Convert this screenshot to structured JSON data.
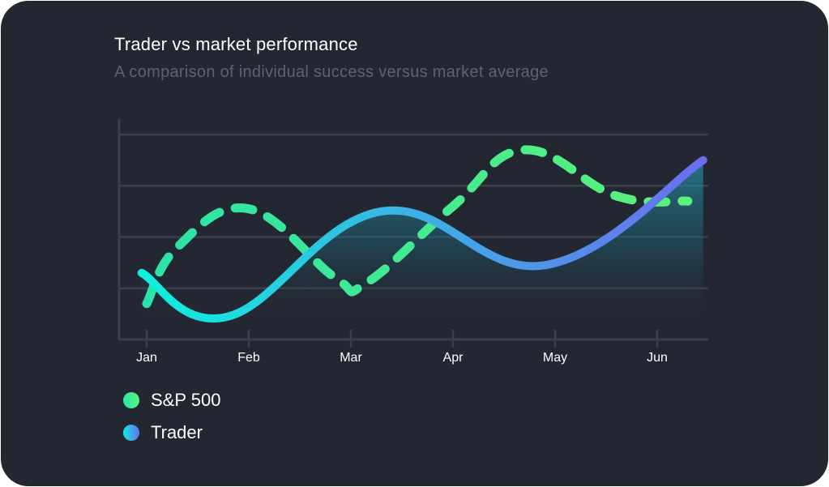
{
  "chart_data": {
    "type": "line",
    "title": "Trader vs market performance",
    "subtitle": "A comparison of individual success versus market average",
    "categories": [
      "Jan",
      "Feb",
      "Mar",
      "Apr",
      "May",
      "Jun"
    ],
    "ylim": [
      0,
      4.3
    ],
    "grid": true,
    "legend_position": "bottom-left",
    "series": [
      {
        "name": "S&P 500",
        "style": "dashed",
        "color_start": "#2be3a8",
        "color_end": "#5cf27a",
        "x": [
          0,
          0.3,
          1,
          1.85,
          2.15,
          3,
          3.7,
          4.6,
          5.3
        ],
        "values": [
          0.7,
          1.8,
          2.55,
          1.2,
          1.1,
          2.6,
          3.7,
          2.8,
          2.7
        ]
      },
      {
        "name": "Trader",
        "style": "solid",
        "area_fill": true,
        "color_start": "#0ef0dc",
        "color_end": "#6b6ef0",
        "x": [
          -0.05,
          0.8,
          2.3,
          3.9,
          5.45
        ],
        "values": [
          1.3,
          0.45,
          2.5,
          1.45,
          3.5
        ]
      }
    ]
  },
  "legend": [
    {
      "label": "S&P 500",
      "color_start": "#2be3a8",
      "color_end": "#5cf27a"
    },
    {
      "label": "Trader",
      "color_start": "#0ef0dc",
      "color_end": "#6b6ef0"
    }
  ]
}
